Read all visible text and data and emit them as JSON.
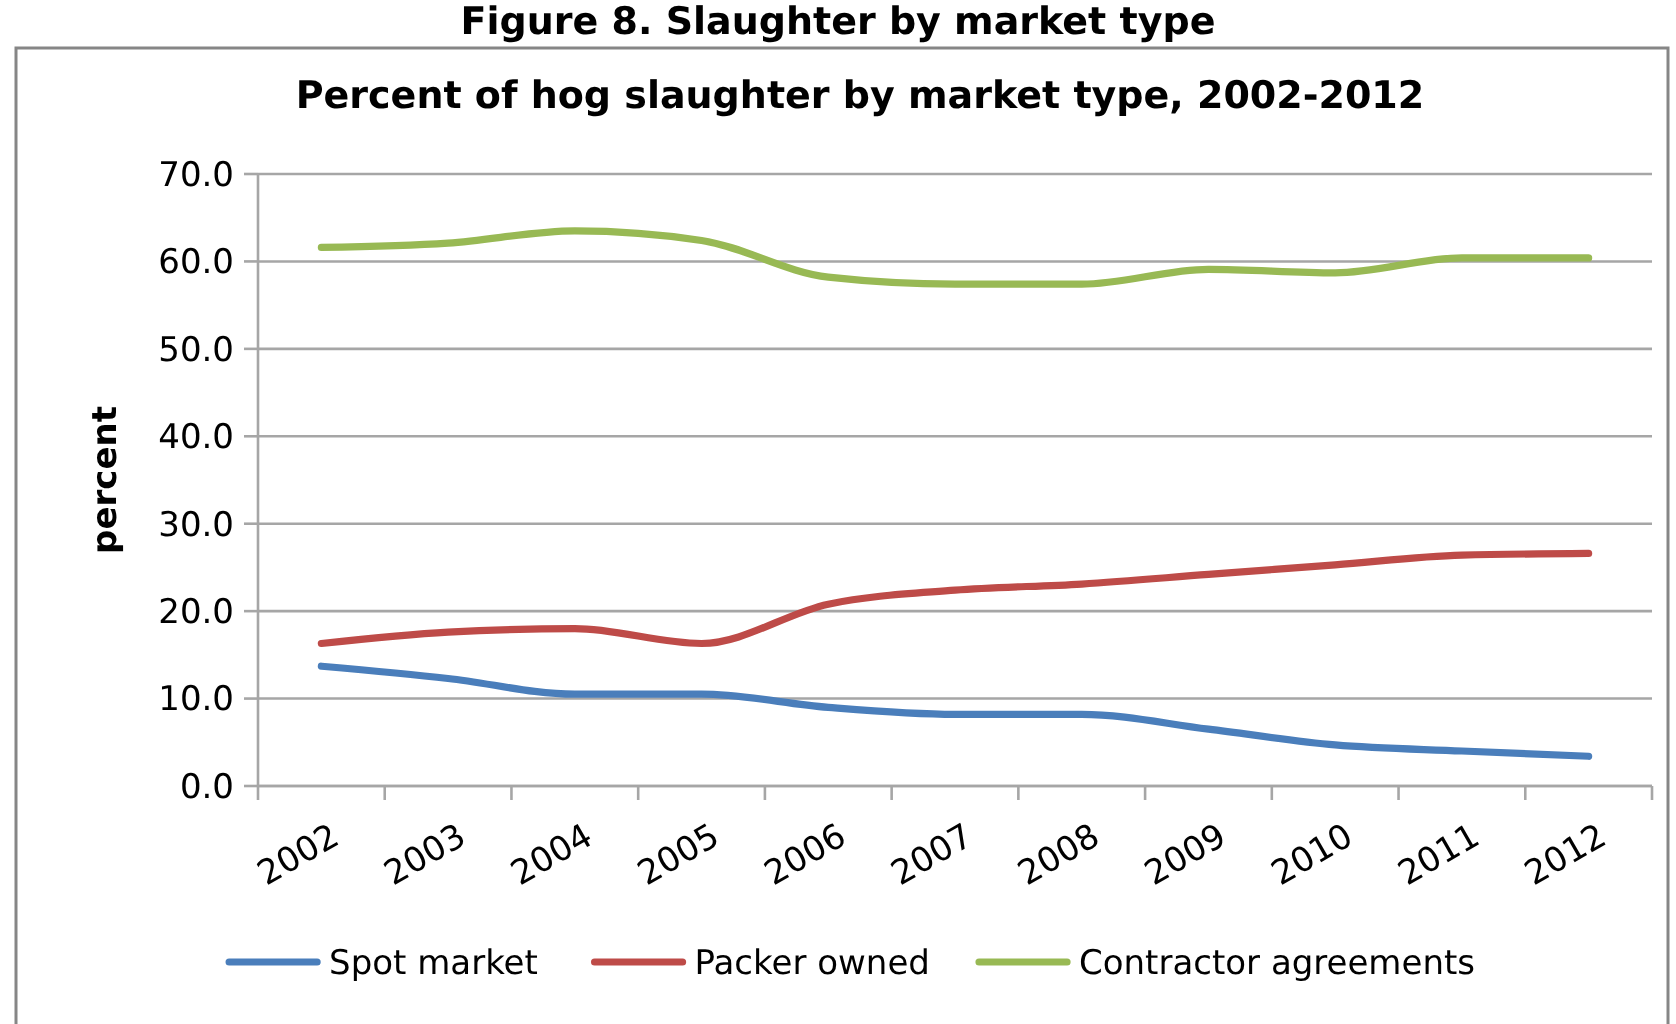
{
  "chart_data": {
    "type": "line",
    "title": "Percent of hog slaughter by market type, 2002-2012",
    "ylabel": "percent",
    "annotations": [
      "Figure 8. Slaughter by market type"
    ],
    "categories": [
      "2002",
      "2003",
      "2004",
      "2005",
      "2006",
      "2007",
      "2008",
      "2009",
      "2010",
      "2011",
      "2012"
    ],
    "series": [
      {
        "name": "Spot market",
        "color": "#4a7ebb",
        "values": [
          13.7,
          12.3,
          10.5,
          10.5,
          9.0,
          8.2,
          8.2,
          6.5,
          4.7,
          4.0,
          3.4
        ]
      },
      {
        "name": "Packer owned",
        "color": "#be4b48",
        "values": [
          16.3,
          17.6,
          18.0,
          16.3,
          20.8,
          22.4,
          23.1,
          24.2,
          25.3,
          26.4,
          26.6
        ]
      },
      {
        "name": "Contractor agreements",
        "color": "#98b954",
        "values": [
          61.6,
          62.1,
          63.5,
          62.4,
          58.2,
          57.4,
          57.4,
          59.1,
          58.7,
          60.4,
          60.4
        ]
      }
    ],
    "ylim": [
      0,
      70
    ],
    "yticks": [
      {
        "value": 0,
        "label": "0.0"
      },
      {
        "value": 10,
        "label": "10.0"
      },
      {
        "value": 20,
        "label": "20.0"
      },
      {
        "value": 30,
        "label": "30.0"
      },
      {
        "value": 40,
        "label": "40.0"
      },
      {
        "value": 50,
        "label": "50.0"
      },
      {
        "value": 60,
        "label": "60.0"
      },
      {
        "value": 70,
        "label": "70.0"
      }
    ],
    "grid": "y",
    "legend": "bottom",
    "line_style": "solid"
  }
}
